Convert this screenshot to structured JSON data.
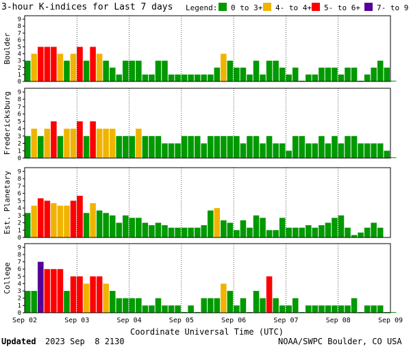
{
  "chart_data": {
    "type": "bar",
    "title": "3-hour K-indices for Last 7 days",
    "legend": {
      "label": "Legend:",
      "entries": [
        {
          "text": "0 to 3+",
          "color": "#009900"
        },
        {
          "text": "4- to 4+",
          "color": "#f0b400"
        },
        {
          "text": "5- to 6+",
          "color": "#ff0000"
        },
        {
          "text": "7- to 9",
          "color": "#550099"
        }
      ]
    },
    "ylim": [
      0,
      9
    ],
    "yticks": [
      "0",
      "1",
      "2",
      "3",
      "4",
      "5",
      "6",
      "7",
      "8",
      "9"
    ],
    "x_date_labels": [
      "Sep 02",
      "Sep 03",
      "Sep 04",
      "Sep 05",
      "Sep 06",
      "Sep 07",
      "Sep 08",
      "Sep 09"
    ],
    "xlabel": "Coordinate Universal Time (UTC)",
    "footer_left_bold": "Updated",
    "footer_left": "2023 Sep  8 2130",
    "footer_right": "NOAA/SWPC Boulder, CO USA",
    "panels": [
      {
        "name": "Boulder",
        "values": [
          3,
          4,
          5,
          5,
          5,
          4,
          3,
          4,
          5,
          3,
          5,
          4,
          3,
          2,
          1,
          3,
          3,
          3,
          1,
          1,
          3,
          3,
          1,
          1,
          1,
          1,
          1,
          1,
          1,
          2,
          4,
          3,
          2,
          2,
          1,
          3,
          1,
          3,
          3,
          2,
          1,
          2,
          0,
          1,
          1,
          2,
          2,
          2,
          1,
          2,
          2,
          0,
          1,
          2,
          3,
          2,
          0
        ]
      },
      {
        "name": "Fredericksburg",
        "values": [
          3,
          4,
          3,
          4,
          5,
          3,
          4,
          4,
          5,
          3,
          5,
          4,
          4,
          4,
          3,
          3,
          3,
          4,
          3,
          3,
          3,
          2,
          2,
          2,
          3,
          3,
          3,
          2,
          3,
          3,
          3,
          3,
          3,
          2,
          3,
          3,
          2,
          3,
          2,
          2,
          1,
          3,
          3,
          2,
          2,
          3,
          2,
          3,
          2,
          3,
          3,
          2,
          2,
          2,
          2,
          1,
          0
        ]
      },
      {
        "name": "Est. Planetary",
        "values": [
          3.33,
          4.33,
          5.33,
          5,
          4.67,
          4.33,
          4.33,
          5,
          5.67,
          3.33,
          4.67,
          3.67,
          3.33,
          3,
          2,
          3,
          2.67,
          2.67,
          2,
          1.67,
          2,
          1.67,
          1.33,
          1.33,
          1.33,
          1.33,
          1.33,
          1.67,
          3.67,
          4,
          2.33,
          2,
          1,
          2.33,
          1.33,
          3,
          2.67,
          1,
          1,
          2.67,
          1.33,
          1.33,
          1.33,
          1.67,
          1.33,
          1.67,
          2,
          2.67,
          3,
          1.33,
          0.33,
          0.67,
          1.33,
          2,
          1.33
        ]
      },
      {
        "name": "College",
        "values": [
          3,
          3,
          7,
          6,
          6,
          6,
          3,
          5,
          5,
          4,
          5,
          5,
          4,
          3,
          2,
          2,
          2,
          2,
          1,
          1,
          2,
          1,
          1,
          1,
          0,
          1,
          0,
          2,
          2,
          2,
          4,
          3,
          1,
          2,
          0,
          3,
          2,
          5,
          2,
          1,
          1,
          2,
          0,
          1,
          1,
          1,
          1,
          1,
          1,
          1,
          2,
          0,
          1,
          1,
          1,
          0,
          0
        ]
      }
    ]
  }
}
